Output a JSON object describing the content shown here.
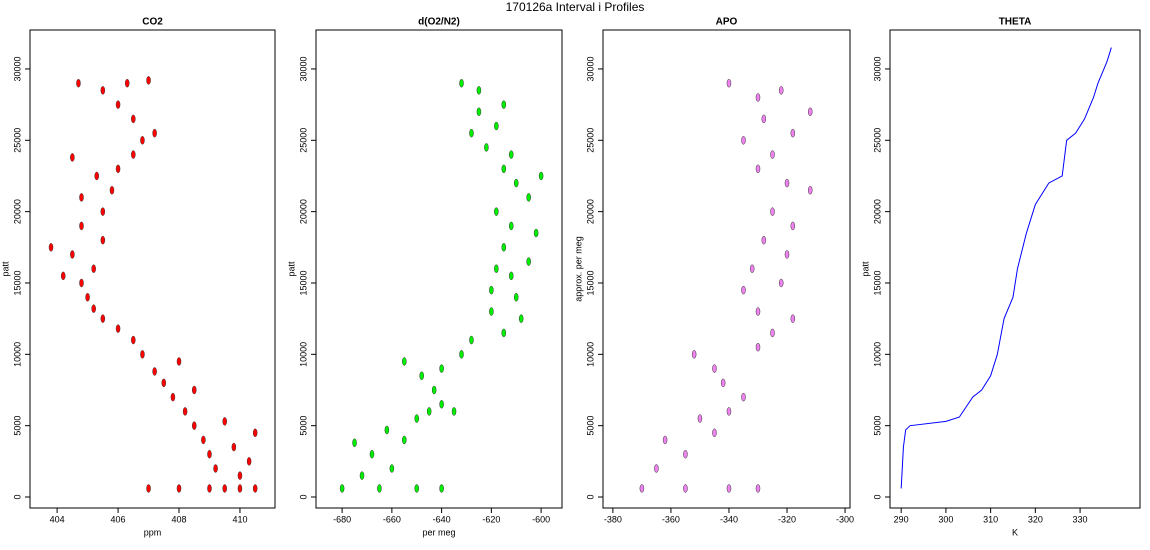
{
  "title": "170126a   Interval i Profiles",
  "chart_data": [
    {
      "type": "scatter",
      "title": "CO2",
      "xlabel": "ppm",
      "ylabel": "patt",
      "color": "#ff0000",
      "xlim": [
        403.11,
        411.15
      ],
      "ylim": [
        -770,
        32730
      ],
      "xticks": [
        404,
        406,
        408,
        410
      ],
      "yticks": [
        0,
        5000,
        10000,
        15000,
        20000,
        25000,
        30000
      ],
      "x": [
        409.5,
        408,
        410.5,
        407,
        409,
        410,
        410,
        409.2,
        410.3,
        409,
        409.8,
        408.8,
        410.5,
        408.5,
        409.5,
        408.2,
        407.8,
        408.5,
        407.5,
        407.2,
        408,
        406.8,
        406.5,
        406,
        405.5,
        405.2,
        405,
        404.8,
        404.2,
        405.2,
        404.5,
        403.8,
        405.5,
        404.8,
        405.5,
        404.8,
        405.8,
        405.3,
        406,
        404.5,
        406.5,
        406.8,
        407.2,
        406.5,
        406,
        405.5,
        406.3,
        407,
        404.7
      ],
      "values": [
        600,
        600,
        600,
        600,
        600,
        600,
        1500,
        2000,
        2500,
        3000,
        3500,
        4000,
        4500,
        5000,
        5300,
        6000,
        7000,
        7500,
        8000,
        8800,
        9500,
        10000,
        11000,
        11800,
        12500,
        13200,
        14000,
        15000,
        15500,
        16000,
        17000,
        17500,
        18000,
        19000,
        20000,
        21000,
        21500,
        22500,
        23000,
        23800,
        24000,
        25000,
        25500,
        26500,
        27500,
        28500,
        29000,
        29200,
        29000
      ]
    },
    {
      "type": "scatter",
      "title": "d(O2/N2)",
      "xlabel": "per meg",
      "ylabel": "patt",
      "color": "#00ee00",
      "xlim": [
        -690.5,
        -591.6
      ],
      "ylim": [
        -770,
        32730
      ],
      "xticks": [
        -680,
        -660,
        -640,
        -620,
        -600
      ],
      "yticks": [
        0,
        5000,
        10000,
        15000,
        20000,
        25000,
        30000
      ],
      "x": [
        -680,
        -665,
        -650,
        -640,
        -672,
        -660,
        -668,
        -675,
        -655,
        -662,
        -650,
        -645,
        -640,
        -635,
        -643,
        -648,
        -640,
        -655,
        -632,
        -628,
        -615,
        -608,
        -620,
        -610,
        -620,
        -612,
        -618,
        -605,
        -615,
        -602,
        -612,
        -618,
        -605,
        -610,
        -600,
        -615,
        -612,
        -622,
        -628,
        -618,
        -625,
        -615,
        -625,
        -632
      ],
      "values": [
        600,
        600,
        600,
        600,
        1500,
        2000,
        3000,
        3800,
        4000,
        4700,
        5500,
        6000,
        6500,
        6000,
        7500,
        8500,
        9000,
        9500,
        10000,
        11000,
        11500,
        12500,
        13000,
        14000,
        14500,
        15500,
        16000,
        16500,
        17500,
        18500,
        19000,
        20000,
        21000,
        22000,
        22500,
        23000,
        24000,
        24500,
        25500,
        26000,
        27000,
        27500,
        28500,
        29000
      ]
    },
    {
      "type": "scatter",
      "title": "APO",
      "ylabel": "approx. per meg",
      "color": "#ee82ee",
      "xlim": [
        -383.4,
        -298.3
      ],
      "ylim": [
        -770,
        32730
      ],
      "xticks": [
        -380,
        -360,
        -340,
        -320,
        -300
      ],
      "yticks": [
        0,
        5000,
        10000,
        15000,
        20000,
        25000,
        30000
      ],
      "x": [
        -370,
        -355,
        -340,
        -330,
        -365,
        -355,
        -362,
        -345,
        -350,
        -340,
        -335,
        -342,
        -345,
        -352,
        -330,
        -325,
        -318,
        -330,
        -335,
        -322,
        -332,
        -320,
        -328,
        -318,
        -325,
        -312,
        -320,
        -330,
        -325,
        -335,
        -318,
        -328,
        -312,
        -330,
        -322,
        -340
      ],
      "values": [
        600,
        600,
        600,
        600,
        2000,
        3000,
        4000,
        4500,
        5500,
        6000,
        7000,
        8000,
        9000,
        10000,
        10500,
        11500,
        12500,
        13000,
        14500,
        15000,
        16000,
        17000,
        18000,
        19000,
        20000,
        21500,
        22000,
        23000,
        24000,
        25000,
        25500,
        26500,
        27000,
        28000,
        28500,
        29000
      ]
    },
    {
      "type": "line",
      "title": "THETA",
      "xlabel": "K",
      "ylabel": "patt",
      "color": "#0000ff",
      "xlim": [
        287.5,
        343.4
      ],
      "ylim": [
        -770,
        32730
      ],
      "xticks": [
        290,
        300,
        310,
        320,
        330
      ],
      "yticks": [
        0,
        5000,
        10000,
        15000,
        20000,
        25000,
        30000
      ],
      "x": [
        290,
        290.5,
        291,
        292,
        300,
        303,
        306,
        308,
        310,
        311.5,
        313,
        315,
        316,
        318,
        320,
        323,
        326,
        327,
        329,
        331,
        333,
        334,
        336,
        337
      ],
      "values": [
        600,
        3500,
        4700,
        5000,
        5300,
        5600,
        7000,
        7500,
        8500,
        10000,
        12500,
        14000,
        16000,
        18500,
        20500,
        22000,
        22500,
        25000,
        25500,
        26500,
        28000,
        29000,
        30500,
        31500
      ]
    }
  ]
}
